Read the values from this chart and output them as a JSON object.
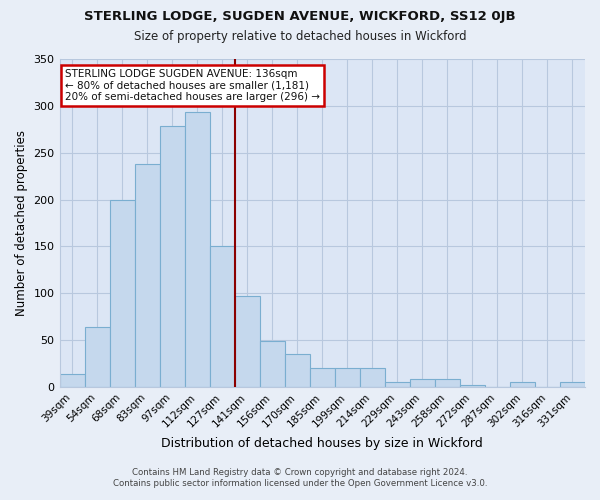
{
  "title": "STERLING LODGE, SUGDEN AVENUE, WICKFORD, SS12 0JB",
  "subtitle": "Size of property relative to detached houses in Wickford",
  "xlabel": "Distribution of detached houses by size in Wickford",
  "ylabel": "Number of detached properties",
  "categories": [
    "39sqm",
    "54sqm",
    "68sqm",
    "83sqm",
    "97sqm",
    "112sqm",
    "127sqm",
    "141sqm",
    "156sqm",
    "170sqm",
    "185sqm",
    "199sqm",
    "214sqm",
    "229sqm",
    "243sqm",
    "258sqm",
    "272sqm",
    "287sqm",
    "302sqm",
    "316sqm",
    "331sqm"
  ],
  "values": [
    14,
    64,
    200,
    238,
    278,
    293,
    150,
    97,
    49,
    35,
    20,
    20,
    20,
    5,
    8,
    8,
    2,
    0,
    5,
    0,
    5
  ],
  "bar_color": "#c5d8ed",
  "bar_edge_color": "#7aaed0",
  "vline_index": 7,
  "vline_color": "#8b0000",
  "ylim": [
    0,
    350
  ],
  "yticks": [
    0,
    50,
    100,
    150,
    200,
    250,
    300,
    350
  ],
  "annotation_title": "STERLING LODGE SUGDEN AVENUE: 136sqm",
  "annotation_line1": "← 80% of detached houses are smaller (1,181)",
  "annotation_line2": "20% of semi-detached houses are larger (296) →",
  "annotation_box_edge_color": "#cc0000",
  "footnote1": "Contains HM Land Registry data © Crown copyright and database right 2024.",
  "footnote2": "Contains public sector information licensed under the Open Government Licence v3.0.",
  "background_color": "#e8eef7",
  "plot_background_color": "#dce6f5",
  "grid_color": "#b8c8de"
}
